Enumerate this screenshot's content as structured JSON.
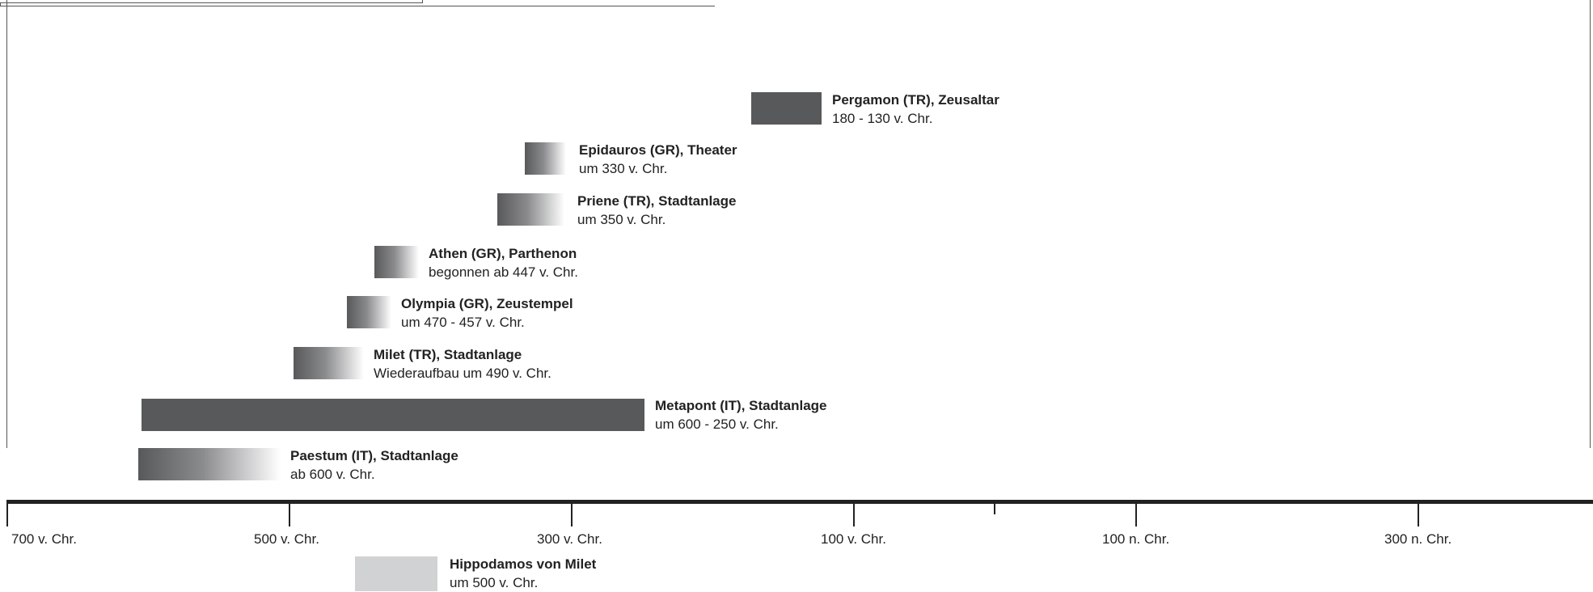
{
  "timeline": {
    "axis": {
      "ticks": [
        {
          "label": "700 v. Chr."
        },
        {
          "label": "500 v. Chr."
        },
        {
          "label": "300 v. Chr."
        },
        {
          "label": "100 v. Chr."
        },
        {
          "label": ""
        },
        {
          "label": "100 n. Chr."
        },
        {
          "label": "300 n. Chr."
        }
      ]
    },
    "colors": {
      "solid": "#58595b",
      "light": "#d1d2d4",
      "axis": "#222222"
    },
    "events": [
      {
        "title": "Pergamon (TR), Zeusaltar",
        "subtitle": "180 - 130 v. Chr.",
        "style": "solid"
      },
      {
        "title": "Epidauros (GR), Theater",
        "subtitle": "um 330 v. Chr.",
        "style": "gradient"
      },
      {
        "title": "Priene (TR), Stadtanlage",
        "subtitle": "um 350 v. Chr.",
        "style": "gradient"
      },
      {
        "title": "Athen (GR), Parthenon",
        "subtitle": "begonnen ab 447 v. Chr.",
        "style": "gradient"
      },
      {
        "title": "Olympia (GR), Zeustempel",
        "subtitle": "um 470 - 457 v. Chr.",
        "style": "gradient"
      },
      {
        "title": "Milet (TR), Stadtanlage",
        "subtitle": "Wiederaufbau um 490 v. Chr.",
        "style": "gradient"
      },
      {
        "title": "Metapont (IT), Stadtanlage",
        "subtitle": "um 600 - 250 v. Chr.",
        "style": "solid"
      },
      {
        "title": "Paestum (IT), Stadtanlage",
        "subtitle": "ab 600 v. Chr.",
        "style": "gradient"
      }
    ],
    "person": {
      "title": "Hippodamos von Milet",
      "subtitle": "um 500 v. Chr.",
      "style": "light"
    }
  }
}
